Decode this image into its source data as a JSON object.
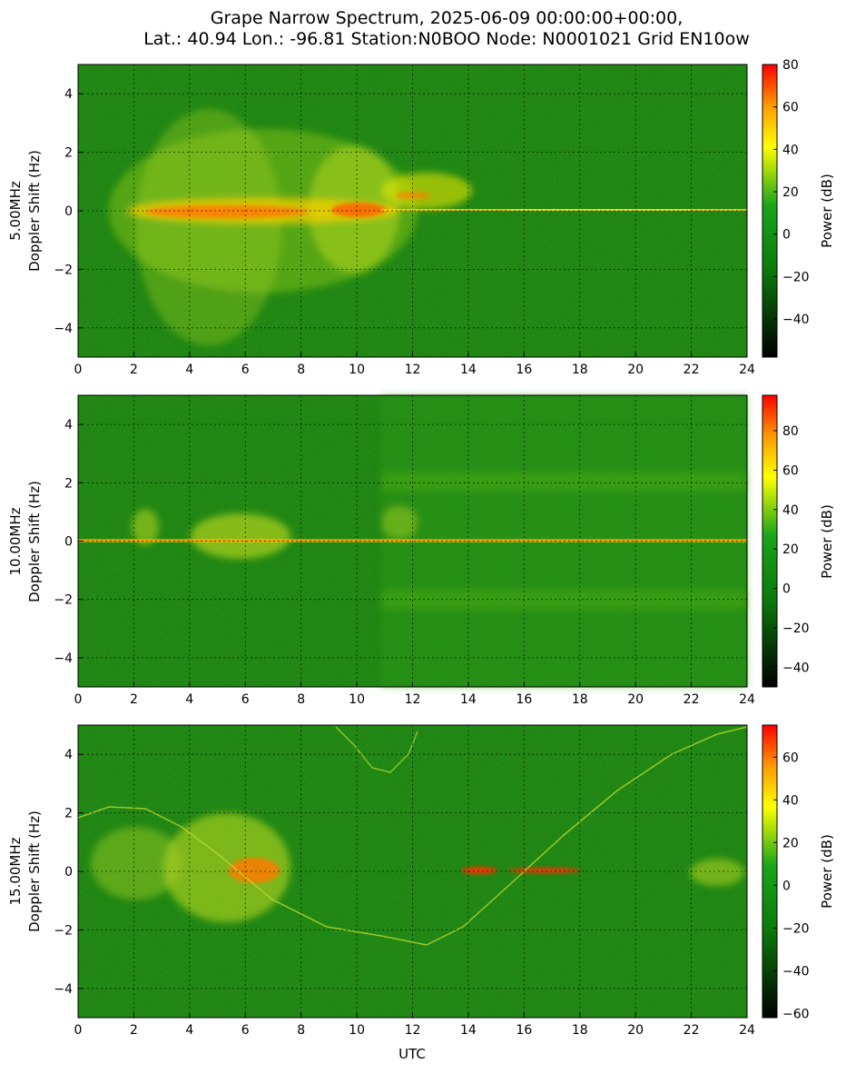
{
  "title_line1": "Grape Narrow Spectrum, 2025-06-09 00:00:00+00:00,",
  "title_line2": "Lat.: 40.94 Lon.: -96.81 Station:N0BOO Node: N0001021 Grid EN10ow",
  "xlabel": "UTC",
  "colors": {
    "green": "#0b7a0b",
    "dark": "#000000",
    "mid": "#0e9a0e",
    "yellow": "#fff200",
    "orange": "#ff9a00",
    "red": "#ff1a00"
  },
  "chart_data": [
    {
      "type": "heatmap",
      "band": "5.00MHz",
      "ylabel_line1": "5.00MHz",
      "ylabel_line2": "Doppler Shift (Hz)",
      "xlim": [
        0,
        24
      ],
      "ylim": [
        -5,
        5
      ],
      "xticks": [
        "0",
        "2",
        "4",
        "6",
        "8",
        "10",
        "12",
        "14",
        "16",
        "18",
        "20",
        "22",
        "24"
      ],
      "yticks": [
        "4",
        "2",
        "0",
        "−2",
        "−4"
      ],
      "colorbar_label": "Power (dB)",
      "colorbar_range": [
        -58,
        80
      ],
      "colorbar_ticks": [
        "80",
        "60",
        "40",
        "20",
        "0",
        "−20",
        "−40"
      ],
      "grid": true
    },
    {
      "type": "heatmap",
      "band": "10.00MHz",
      "ylabel_line1": "10.00MHz",
      "ylabel_line2": "Doppler Shift (Hz)",
      "xlim": [
        0,
        24
      ],
      "ylim": [
        -5,
        5
      ],
      "xticks": [
        "0",
        "2",
        "4",
        "6",
        "8",
        "10",
        "12",
        "14",
        "16",
        "18",
        "20",
        "22",
        "24"
      ],
      "yticks": [
        "4",
        "2",
        "0",
        "−2",
        "−4"
      ],
      "colorbar_label": "Power (dB)",
      "colorbar_range": [
        -50,
        98
      ],
      "colorbar_ticks": [
        "80",
        "60",
        "40",
        "20",
        "0",
        "−20",
        "−40"
      ],
      "grid": true
    },
    {
      "type": "heatmap",
      "band": "15.00MHz",
      "ylabel_line1": "15.00MHz",
      "ylabel_line2": "Doppler Shift (Hz)",
      "xlim": [
        0,
        24
      ],
      "ylim": [
        -5,
        5
      ],
      "xticks": [
        "0",
        "2",
        "4",
        "6",
        "8",
        "10",
        "12",
        "14",
        "16",
        "18",
        "20",
        "22",
        "24"
      ],
      "yticks": [
        "4",
        "2",
        "0",
        "−2",
        "−4"
      ],
      "colorbar_label": "Power (dB)",
      "colorbar_range": [
        -62,
        75
      ],
      "colorbar_ticks": [
        "60",
        "40",
        "20",
        "0",
        "−20",
        "−40",
        "−60"
      ],
      "grid": true
    }
  ]
}
